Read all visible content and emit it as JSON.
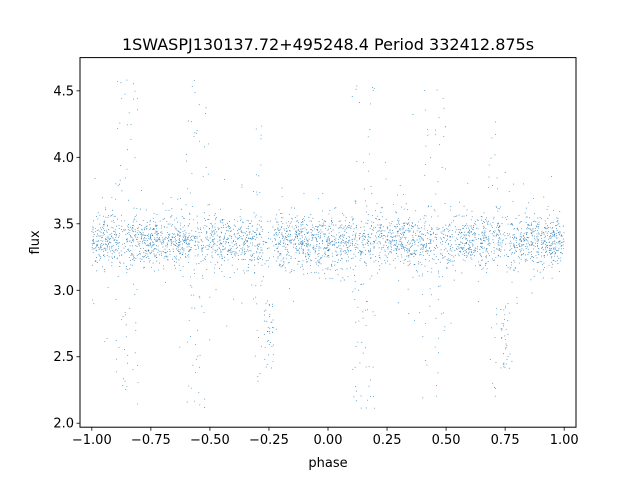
{
  "chart_data": {
    "type": "scatter",
    "title": "1SWASPJ130137.72+495248.4 Period 332412.875s",
    "xlabel": "phase",
    "ylabel": "flux",
    "xlim": [
      -1.05,
      1.05
    ],
    "ylim": [
      1.97,
      4.75
    ],
    "xticks": [
      -1.0,
      -0.75,
      -0.5,
      -0.25,
      0.0,
      0.25,
      0.5,
      0.75,
      1.0
    ],
    "xtick_labels": [
      "−1.00",
      "−0.75",
      "−0.50",
      "−0.25",
      "0.00",
      "0.25",
      "0.50",
      "0.75",
      "1.00"
    ],
    "yticks": [
      2.0,
      2.5,
      3.0,
      3.5,
      4.0,
      4.5
    ],
    "ytick_labels": [
      "2.0",
      "2.5",
      "3.0",
      "3.5",
      "4.0",
      "4.5"
    ],
    "grid": false,
    "legend": "none",
    "marker_color": "#1f77b4",
    "series": [
      {
        "phase_range": [
          -1.0,
          1.0
        ],
        "baseline_flux": 3.37,
        "baseline_scatter": 0.1,
        "point_count_estimate": 20000,
        "dips": [
          {
            "phase": -0.25,
            "min_flux": 2.4
          },
          {
            "phase": 0.75,
            "min_flux": 2.4
          }
        ],
        "bursts": [
          {
            "phase_range": [
              -0.9,
              -0.8
            ],
            "flux_range": [
              2.1,
              4.6
            ]
          },
          {
            "phase_range": [
              -0.6,
              -0.5
            ],
            "flux_range": [
              2.1,
              4.6
            ]
          },
          {
            "phase_range": [
              -0.32,
              -0.28
            ],
            "flux_range": [
              2.2,
              4.3
            ]
          },
          {
            "phase_range": [
              0.1,
              0.2
            ],
            "flux_range": [
              2.1,
              4.6
            ]
          },
          {
            "phase_range": [
              0.4,
              0.5
            ],
            "flux_range": [
              2.1,
              4.6
            ]
          },
          {
            "phase_range": [
              0.68,
              0.72
            ],
            "flux_range": [
              2.2,
              4.3
            ]
          }
        ]
      }
    ]
  }
}
